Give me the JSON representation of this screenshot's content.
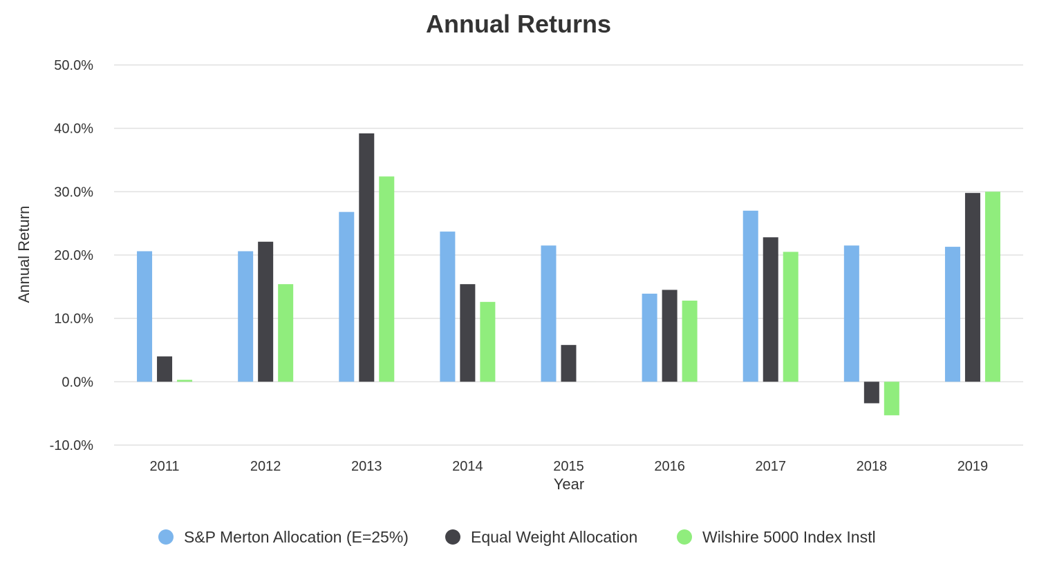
{
  "chart_data": {
    "type": "bar",
    "title": "Annual Returns",
    "xlabel": "Year",
    "ylabel": "Annual Return",
    "ylim": [
      -10,
      50
    ],
    "ytick_values": [
      -10,
      0,
      10,
      20,
      30,
      40,
      50
    ],
    "ytick_labels": [
      "-10.0%",
      "0.0%",
      "10.0%",
      "20.0%",
      "30.0%",
      "40.0%",
      "50.0%"
    ],
    "categories": [
      "2011",
      "2012",
      "2013",
      "2014",
      "2015",
      "2016",
      "2017",
      "2018",
      "2019"
    ],
    "grid": true,
    "legend_position": "bottom",
    "series": [
      {
        "name": "S&P Merton Allocation (E=25%)",
        "color": "#7cb5ec",
        "values": [
          20.6,
          20.6,
          26.8,
          23.7,
          21.5,
          13.9,
          27.0,
          21.5,
          21.3
        ]
      },
      {
        "name": "Equal Weight Allocation",
        "color": "#434348",
        "values": [
          4.0,
          22.1,
          39.2,
          15.4,
          5.8,
          14.5,
          22.8,
          -3.4,
          29.8
        ]
      },
      {
        "name": "Wilshire 5000 Index Instl",
        "color": "#90ed7d",
        "values": [
          0.3,
          15.4,
          32.4,
          12.6,
          0.0,
          12.8,
          20.5,
          -5.3,
          30.0
        ]
      }
    ]
  }
}
